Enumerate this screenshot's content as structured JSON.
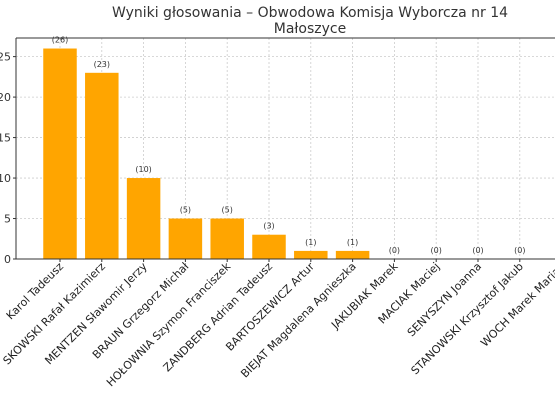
{
  "chart_data": {
    "type": "bar",
    "title": "Wyniki głosowania – Obwodowa Komisja Wyborcza nr 14",
    "subtitle": "Małoszyce",
    "categories": [
      "Karol Tadeusz",
      "SKOWSKI Rafał Kazimierz",
      "MENTZEN Sławomir Jerzy",
      "BRAUN Grzegorz Michał",
      "HOŁOWNIA Szymon Franciszek",
      "ZANDBERG Adrian Tadeusz",
      "BARTOSZEWICZ Artur",
      "BIEJAT Magdalena Agnieszka",
      "JAKUBIAK Marek",
      "MACIAK Maciej",
      "SENYSZYN Joanna",
      "STANOWSKI Krzysztof Jakub",
      "WOCH Marek Marian"
    ],
    "values": [
      26,
      23,
      10,
      5,
      5,
      3,
      1,
      1,
      0,
      0,
      0,
      0,
      0
    ],
    "data_labels": [
      "(26)",
      "(23)",
      "(10)",
      "(5)",
      "(5)",
      "(3)",
      "(1)",
      "(1)",
      "(0)",
      "(0)",
      "(0)",
      "(0)",
      "(0)"
    ],
    "yticks": [
      0,
      5,
      10,
      15,
      20,
      25
    ],
    "ylim": [
      0,
      27.3
    ],
    "xlabel": "",
    "ylabel": "",
    "grid": true,
    "colors": {
      "bar": "#FFA500",
      "grid": "#cccccc",
      "axis": "#333333"
    }
  }
}
